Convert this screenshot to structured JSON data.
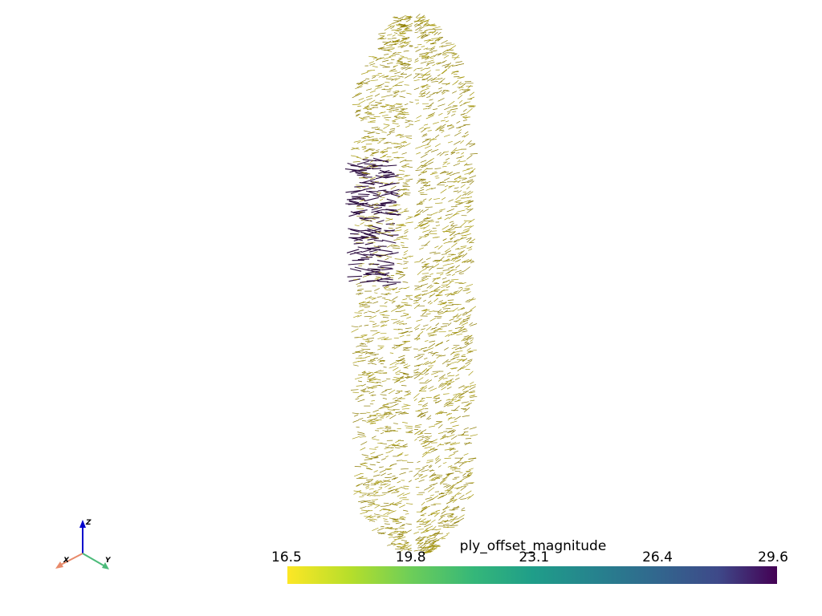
{
  "colorbar": {
    "title": "ply_offset_magnitude",
    "ticks": [
      16.5,
      19.8,
      23.1,
      26.4,
      29.6
    ]
  },
  "axes_widget": {
    "x": "X",
    "y": "Y",
    "z": "Z"
  }
}
